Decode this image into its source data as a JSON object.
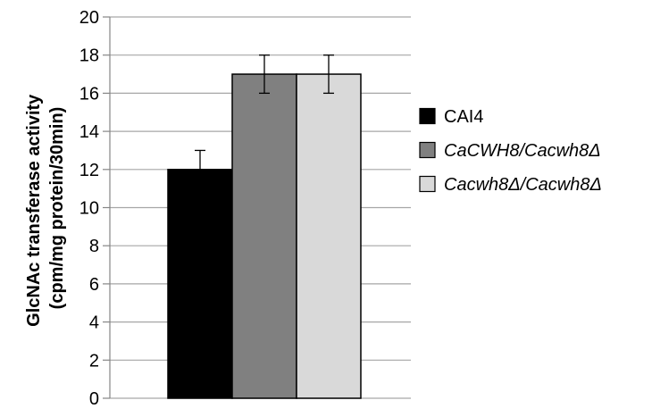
{
  "chart_data": {
    "type": "bar",
    "ylabel_lines": [
      "GlcNAc transferase activity",
      "(cpm/mg protein/30min)"
    ],
    "xlabel": "",
    "ylim": [
      0,
      20
    ],
    "yticks": [
      0,
      2,
      4,
      6,
      8,
      10,
      12,
      14,
      16,
      18,
      20
    ],
    "grid": true,
    "legend_position": "right",
    "series": [
      {
        "name": "CAI4",
        "value": 12,
        "error": 1,
        "color": "#000000",
        "italic": false
      },
      {
        "name": "CaCWH8/Cacwh8Δ",
        "value": 17,
        "error": 1,
        "color": "#808080",
        "italic": true
      },
      {
        "name": "Cacwh8Δ/Cacwh8Δ",
        "value": 17,
        "error": 1,
        "color": "#d9d9d9",
        "italic": true
      }
    ]
  }
}
